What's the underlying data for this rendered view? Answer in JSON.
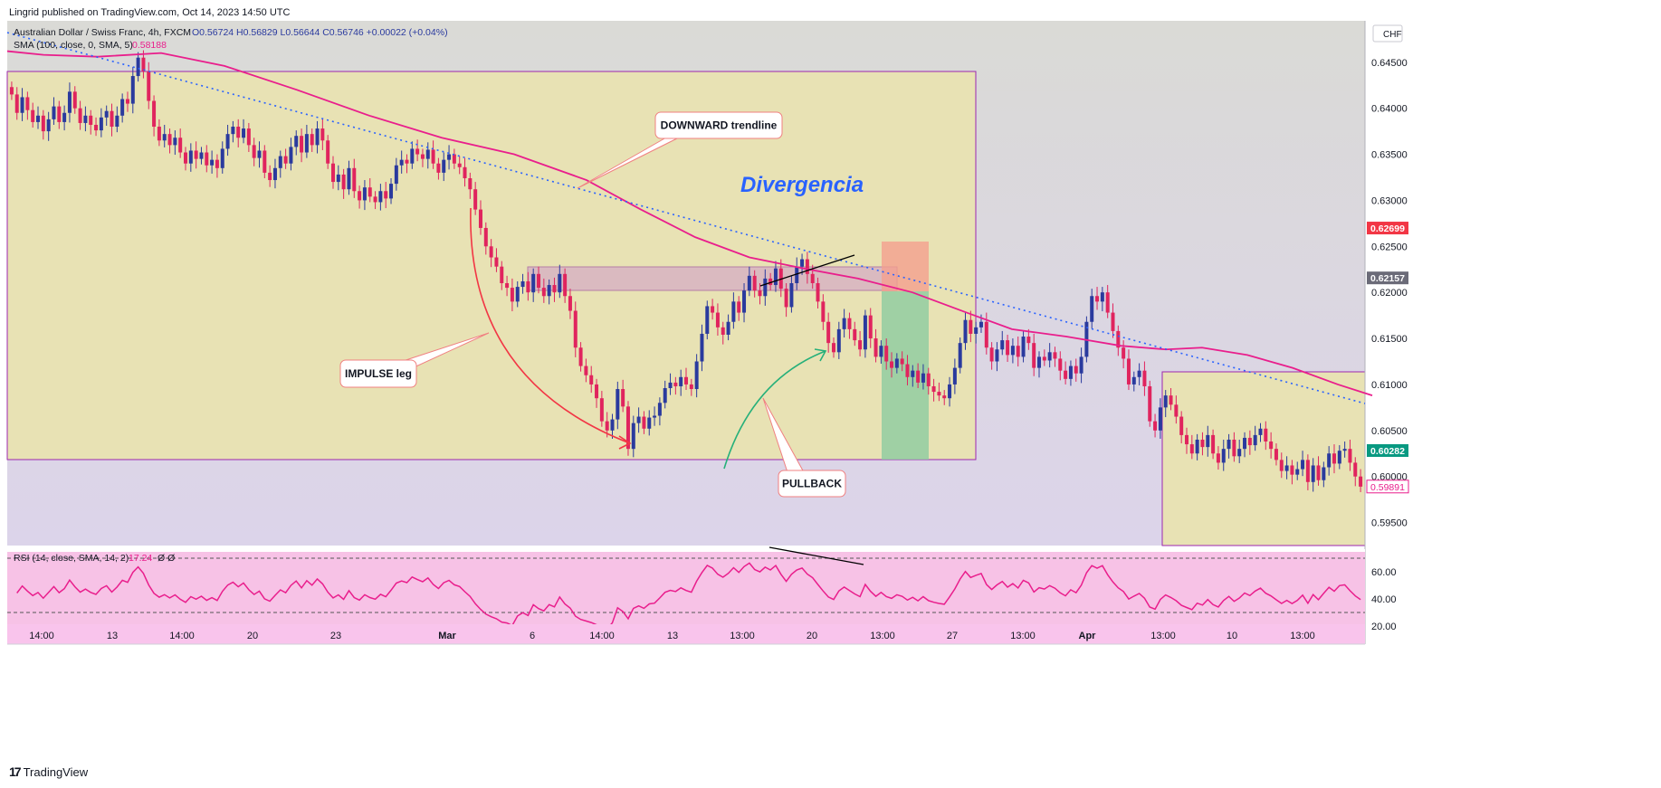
{
  "publisher_line": "Lingrid published on TradingView.com, Oct 14, 2023 14:50 UTC",
  "footer": {
    "logo_mark": "17",
    "brand": "TradingView"
  },
  "colors": {
    "bull": "#2a3a9e",
    "bear": "#e0245e",
    "sma": "#e91e8c",
    "trendline": "#2962ff",
    "box": "#e8e2b0",
    "bg": "#d9d7e6",
    "rsi_bg": "#f7c6e8",
    "rsi_line": "#e91e8c",
    "text_blue": "#2962ff"
  },
  "chart_data": {
    "type": "candlestick",
    "symbol_header": "Australian Dollar / Swiss Franc, 4h, FXCM",
    "ohlc": {
      "open": "O0.56724",
      "high": "H0.56829",
      "low": "L0.56644",
      "close": "C0.56746",
      "change": "+0.00022 (+0.04%)"
    },
    "sma_label": "SMA (100, close, 0, SMA, 5)",
    "sma_value": "0.58188",
    "currency": "CHF",
    "y_range": [
      0.5925,
      0.6495
    ],
    "y_ticks": [
      "0.64500",
      "0.64000",
      "0.63500",
      "0.63000",
      "0.62500",
      "0.62000",
      "0.61500",
      "0.61000",
      "0.60500",
      "0.60000",
      "0.59500"
    ],
    "price_tags": [
      {
        "value": "0.62699",
        "color": "#f23645",
        "style": "solid"
      },
      {
        "value": "0.62157",
        "color": "#6b6b78",
        "style": "solid"
      },
      {
        "value": "0.60282",
        "color": "#089981",
        "style": "solid"
      },
      {
        "value": "0.59891",
        "color": "#e91e8c",
        "style": "outline"
      }
    ],
    "x_ticks": [
      "14:00",
      "13",
      "14:00",
      "20",
      "23",
      "Mar",
      "6",
      "14:00",
      "13",
      "13:00",
      "20",
      "13:00",
      "27",
      "13:00",
      "Apr",
      "13:00",
      "10",
      "13:00"
    ],
    "closes": [
      0.6415,
      0.6395,
      0.6412,
      0.6398,
      0.6385,
      0.6392,
      0.6375,
      0.6388,
      0.6402,
      0.6385,
      0.6395,
      0.6418,
      0.64,
      0.6384,
      0.6392,
      0.6382,
      0.6376,
      0.639,
      0.6397,
      0.638,
      0.6392,
      0.641,
      0.6405,
      0.6435,
      0.6455,
      0.644,
      0.6408,
      0.638,
      0.6365,
      0.6372,
      0.636,
      0.6368,
      0.6352,
      0.634,
      0.6354,
      0.6345,
      0.6352,
      0.6338,
      0.6344,
      0.6335,
      0.6356,
      0.6372,
      0.638,
      0.6368,
      0.6378,
      0.636,
      0.6346,
      0.6354,
      0.633,
      0.6322,
      0.6335,
      0.6348,
      0.634,
      0.6358,
      0.637,
      0.6352,
      0.6372,
      0.636,
      0.6378,
      0.6365,
      0.634,
      0.632,
      0.6328,
      0.6312,
      0.6335,
      0.631,
      0.63,
      0.6314,
      0.6304,
      0.6298,
      0.631,
      0.6302,
      0.6318,
      0.6338,
      0.6344,
      0.634,
      0.6356,
      0.635,
      0.6345,
      0.6355,
      0.634,
      0.633,
      0.6344,
      0.635,
      0.634,
      0.6336,
      0.6324,
      0.6312,
      0.629,
      0.627,
      0.625,
      0.6238,
      0.6228,
      0.621,
      0.6205,
      0.619,
      0.6206,
      0.6212,
      0.62,
      0.622,
      0.6205,
      0.6196,
      0.6208,
      0.62,
      0.622,
      0.6196,
      0.618,
      0.614,
      0.612,
      0.611,
      0.61,
      0.6085,
      0.606,
      0.605,
      0.6062,
      0.6095,
      0.6076,
      0.603,
      0.6058,
      0.6065,
      0.6052,
      0.6064,
      0.6066,
      0.608,
      0.6096,
      0.6102,
      0.6098,
      0.6108,
      0.61,
      0.6095,
      0.6125,
      0.6155,
      0.6185,
      0.6178,
      0.6162,
      0.6154,
      0.6168,
      0.619,
      0.6178,
      0.6202,
      0.6218,
      0.6202,
      0.6196,
      0.6215,
      0.6208,
      0.6226,
      0.6204,
      0.6184,
      0.621,
      0.6228,
      0.6236,
      0.622,
      0.621,
      0.619,
      0.6168,
      0.6145,
      0.6135,
      0.616,
      0.6172,
      0.616,
      0.6148,
      0.6138,
      0.6175,
      0.615,
      0.613,
      0.6142,
      0.6125,
      0.6118,
      0.6128,
      0.6122,
      0.6108,
      0.6115,
      0.6102,
      0.6112,
      0.6098,
      0.6092,
      0.6088,
      0.6085,
      0.61,
      0.6118,
      0.6145,
      0.617,
      0.6155,
      0.6162,
      0.6168,
      0.614,
      0.6125,
      0.6138,
      0.6148,
      0.6132,
      0.6142,
      0.613,
      0.6152,
      0.6145,
      0.6118,
      0.613,
      0.6126,
      0.6135,
      0.6128,
      0.6115,
      0.6106,
      0.612,
      0.6112,
      0.613,
      0.6168,
      0.6196,
      0.619,
      0.62,
      0.6178,
      0.6158,
      0.614,
      0.6128,
      0.61,
      0.6108,
      0.6115,
      0.6098,
      0.606,
      0.605,
      0.6075,
      0.6088,
      0.6078,
      0.6065,
      0.6045,
      0.6035,
      0.6025,
      0.604,
      0.6032,
      0.6045,
      0.6025,
      0.6015,
      0.603,
      0.604,
      0.6022,
      0.603,
      0.6042,
      0.6034,
      0.6045,
      0.6052,
      0.6038,
      0.603,
      0.6018,
      0.6006,
      0.6012,
      0.6002,
      0.6008,
      0.6018,
      0.5994,
      0.6012,
      0.5996,
      0.601,
      0.6025,
      0.6014,
      0.6028,
      0.603,
      0.6015,
      0.6,
      0.5989
    ],
    "sma_points": [
      [
        0,
        0.6462
      ],
      [
        40,
        0.6458
      ],
      [
        100,
        0.6456
      ],
      [
        170,
        0.646
      ],
      [
        240,
        0.6446
      ],
      [
        320,
        0.642
      ],
      [
        400,
        0.6392
      ],
      [
        480,
        0.6368
      ],
      [
        560,
        0.635
      ],
      [
        640,
        0.6322
      ],
      [
        700,
        0.629
      ],
      [
        760,
        0.626
      ],
      [
        820,
        0.6238
      ],
      [
        880,
        0.6226
      ],
      [
        940,
        0.6215
      ],
      [
        1000,
        0.62
      ],
      [
        1060,
        0.6178
      ],
      [
        1110,
        0.616
      ],
      [
        1170,
        0.6152
      ],
      [
        1230,
        0.6142
      ],
      [
        1280,
        0.6138
      ],
      [
        1320,
        0.614
      ],
      [
        1370,
        0.6132
      ],
      [
        1420,
        0.6118
      ],
      [
        1470,
        0.61
      ],
      [
        1508,
        0.6088
      ]
    ],
    "rsi": {
      "label": "RSI (14, close, SMA, 14, 2)",
      "value": "17.24",
      "extra": "Ø Ø",
      "ticks": [
        "60.00",
        "40.00",
        "20.00"
      ],
      "range": [
        12,
        74
      ]
    },
    "annotations": [
      {
        "text": "DOWNWARD trendline"
      },
      {
        "text": "Divergencia"
      },
      {
        "text": "IMPULSE leg"
      },
      {
        "text": "PULLBACK"
      }
    ]
  }
}
